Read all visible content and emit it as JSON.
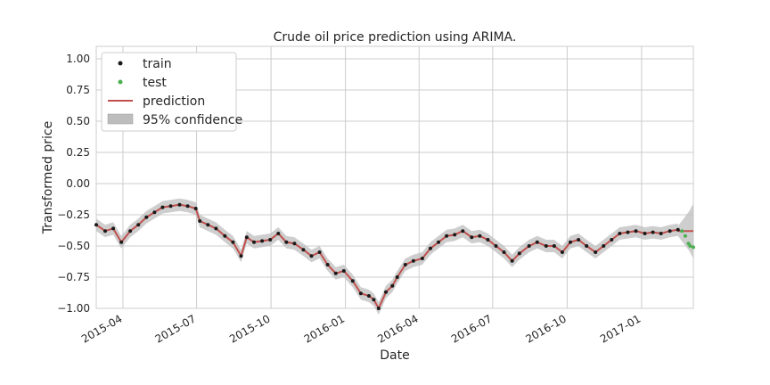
{
  "chart_data": {
    "type": "line",
    "title": "Crude oil price prediction using ARIMA.",
    "xlabel": "Date",
    "ylabel": "Transformed price",
    "ylim": [
      -1.0,
      1.1
    ],
    "xlim": [
      "2015-02-27",
      "2017-03-06"
    ],
    "y_ticks": [
      -1.0,
      -0.75,
      -0.5,
      -0.25,
      0.0,
      0.25,
      0.5,
      0.75,
      1.0
    ],
    "y_tick_labels": [
      "−1.00",
      "−0.75",
      "−0.50",
      "−0.25",
      "0.00",
      "0.25",
      "0.50",
      "0.75",
      "1.00"
    ],
    "x_ticks": [
      "2015-04-01",
      "2015-07-01",
      "2015-10-01",
      "2016-01-01",
      "2016-04-01",
      "2016-07-01",
      "2016-10-01",
      "2017-01-01"
    ],
    "x_tick_labels": [
      "2015-04",
      "2015-07",
      "2015-10",
      "2016-01",
      "2016-04",
      "2016-07",
      "2016-10",
      "2017-01"
    ],
    "grid": true,
    "legend_position": "top-left",
    "colors": {
      "train": "#1a1a1a",
      "test": "#4caf50",
      "prediction": "#c0504d",
      "confidence": "#bdbdbd"
    },
    "legend": [
      {
        "label": "train",
        "kind": "dot",
        "color": "#1a1a1a"
      },
      {
        "label": "test",
        "kind": "dot",
        "color": "#4caf50"
      },
      {
        "label": "prediction",
        "kind": "line",
        "color": "#c0504d"
      },
      {
        "label": "95% confidence",
        "kind": "patch",
        "color": "#bdbdbd"
      }
    ],
    "confidence_halfwidth": 0.05,
    "series": [
      {
        "name": "train",
        "x": [
          "2015-02-27",
          "2015-03-10",
          "2015-03-20",
          "2015-03-30",
          "2015-04-10",
          "2015-04-20",
          "2015-04-30",
          "2015-05-10",
          "2015-05-20",
          "2015-05-30",
          "2015-06-10",
          "2015-06-20",
          "2015-06-30",
          "2015-07-05",
          "2015-07-15",
          "2015-07-25",
          "2015-08-05",
          "2015-08-15",
          "2015-08-25",
          "2015-09-01",
          "2015-09-10",
          "2015-09-20",
          "2015-09-30",
          "2015-10-10",
          "2015-10-20",
          "2015-10-30",
          "2015-11-10",
          "2015-11-20",
          "2015-11-30",
          "2015-12-10",
          "2015-12-20",
          "2015-12-30",
          "2016-01-10",
          "2016-01-20",
          "2016-01-30",
          "2016-02-05",
          "2016-02-11",
          "2016-02-20",
          "2016-02-28",
          "2016-03-05",
          "2016-03-15",
          "2016-03-25",
          "2016-04-05",
          "2016-04-15",
          "2016-04-25",
          "2016-05-05",
          "2016-05-15",
          "2016-05-25",
          "2016-06-05",
          "2016-06-15",
          "2016-06-25",
          "2016-07-05",
          "2016-07-15",
          "2016-07-25",
          "2016-08-03",
          "2016-08-15",
          "2016-08-25",
          "2016-09-05",
          "2016-09-15",
          "2016-09-25",
          "2016-10-05",
          "2016-10-15",
          "2016-10-25",
          "2016-11-05",
          "2016-11-15",
          "2016-11-25",
          "2016-12-05",
          "2016-12-15",
          "2016-12-25",
          "2017-01-05",
          "2017-01-15",
          "2017-01-25",
          "2017-02-05",
          "2017-02-15"
        ],
        "y": [
          -0.33,
          -0.38,
          -0.36,
          -0.47,
          -0.38,
          -0.33,
          -0.27,
          -0.23,
          -0.19,
          -0.18,
          -0.17,
          -0.18,
          -0.2,
          -0.3,
          -0.33,
          -0.36,
          -0.42,
          -0.47,
          -0.58,
          -0.43,
          -0.47,
          -0.46,
          -0.45,
          -0.4,
          -0.47,
          -0.48,
          -0.53,
          -0.58,
          -0.55,
          -0.65,
          -0.72,
          -0.7,
          -0.78,
          -0.88,
          -0.9,
          -0.93,
          -1.0,
          -0.87,
          -0.82,
          -0.75,
          -0.65,
          -0.62,
          -0.6,
          -0.52,
          -0.47,
          -0.42,
          -0.41,
          -0.38,
          -0.43,
          -0.42,
          -0.45,
          -0.5,
          -0.55,
          -0.62,
          -0.56,
          -0.5,
          -0.47,
          -0.5,
          -0.5,
          -0.55,
          -0.47,
          -0.45,
          -0.5,
          -0.55,
          -0.5,
          -0.45,
          -0.4,
          -0.39,
          -0.38,
          -0.4,
          -0.39,
          -0.4,
          -0.38,
          -0.37
        ]
      },
      {
        "name": "test",
        "x": [
          "2017-02-20",
          "2017-02-24",
          "2017-02-28",
          "2017-03-02",
          "2017-03-06"
        ],
        "y": [
          -0.38,
          -0.42,
          -0.48,
          -0.5,
          -0.51
        ]
      },
      {
        "name": "prediction",
        "x": [
          "2017-02-15",
          "2017-03-06"
        ],
        "y": [
          -0.38,
          -0.38
        ]
      },
      {
        "name": "95% confidence",
        "x": [
          "2017-02-15",
          "2017-02-22",
          "2017-03-01",
          "2017-03-06"
        ],
        "upper": [
          -0.34,
          -0.28,
          -0.22,
          -0.16
        ],
        "lower": [
          -0.42,
          -0.48,
          -0.54,
          -0.6
        ]
      }
    ]
  }
}
